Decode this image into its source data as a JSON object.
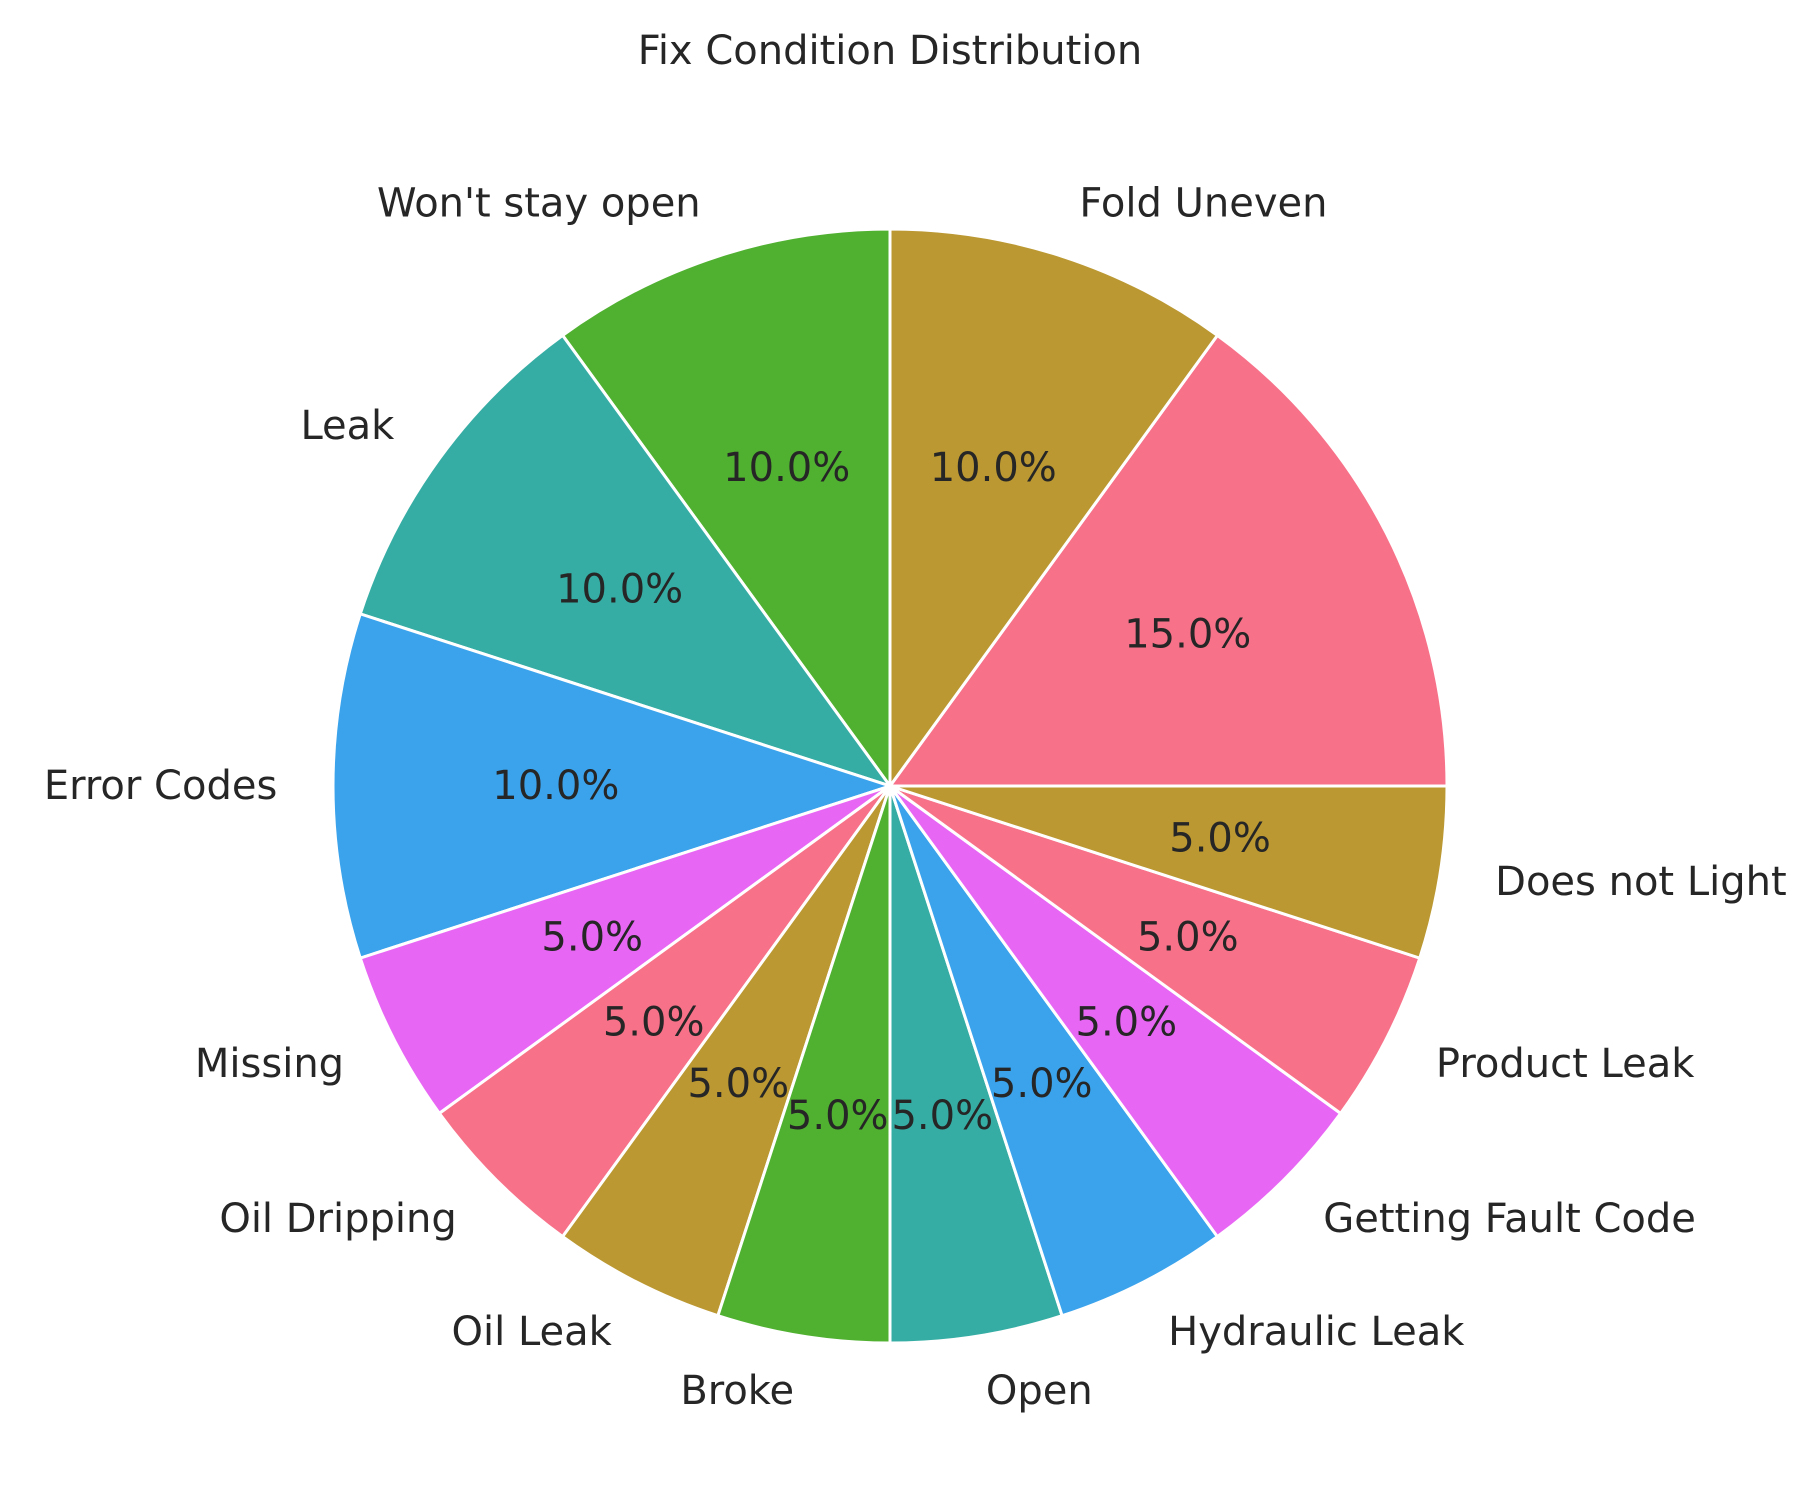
{
  "chart_data": {
    "type": "pie",
    "title": "Fix Condition Distribution",
    "start_angle_deg": 0,
    "direction": "counterclockwise",
    "slices": [
      {
        "label": "",
        "value": 15.0,
        "pct_text": "15.0%",
        "color": "#f77189"
      },
      {
        "label": "Fold Uneven",
        "value": 10.0,
        "pct_text": "10.0%",
        "color": "#bb9832"
      },
      {
        "label": "Won't stay open",
        "value": 10.0,
        "pct_text": "10.0%",
        "color": "#50b131"
      },
      {
        "label": "Leak",
        "value": 10.0,
        "pct_text": "10.0%",
        "color": "#36ada4"
      },
      {
        "label": "Error Codes",
        "value": 10.0,
        "pct_text": "10.0%",
        "color": "#3ba3ec"
      },
      {
        "label": "Missing",
        "value": 5.0,
        "pct_text": "5.0%",
        "color": "#e866f4"
      },
      {
        "label": "Oil Dripping",
        "value": 5.0,
        "pct_text": "5.0%",
        "color": "#f77189"
      },
      {
        "label": "Oil Leak",
        "value": 5.0,
        "pct_text": "5.0%",
        "color": "#bb9832"
      },
      {
        "label": "Broke",
        "value": 5.0,
        "pct_text": "5.0%",
        "color": "#50b131"
      },
      {
        "label": "Open",
        "value": 5.0,
        "pct_text": "5.0%",
        "color": "#36ada4"
      },
      {
        "label": "Hydraulic Leak",
        "value": 5.0,
        "pct_text": "5.0%",
        "color": "#3ba3ec"
      },
      {
        "label": "Getting Fault Code",
        "value": 5.0,
        "pct_text": "5.0%",
        "color": "#e866f4"
      },
      {
        "label": "Product Leak",
        "value": 5.0,
        "pct_text": "5.0%",
        "color": "#f77189"
      },
      {
        "label": "Does not Light",
        "value": 5.0,
        "pct_text": "5.0%",
        "color": "#bb9832"
      }
    ]
  }
}
